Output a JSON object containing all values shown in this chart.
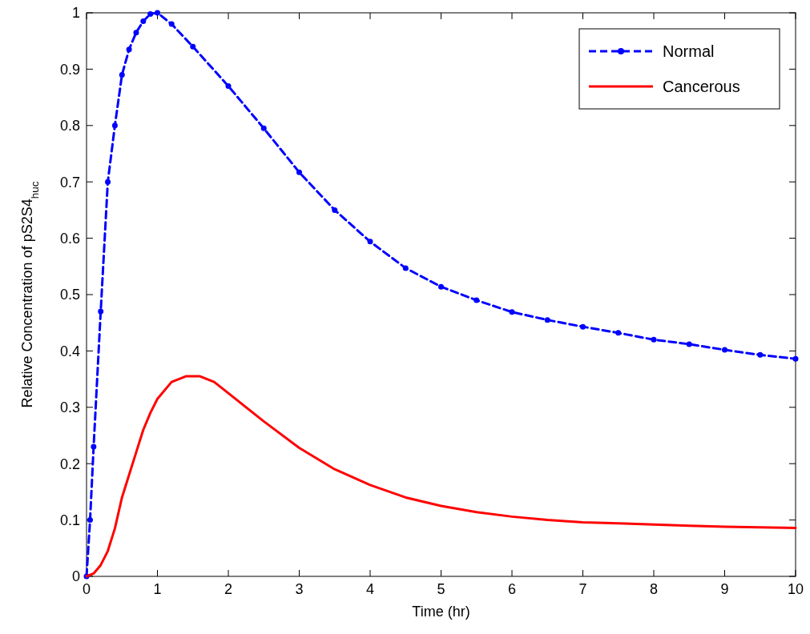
{
  "chart_data": {
    "type": "line",
    "xlabel": "Time (hr)",
    "ylabel": "Relative Concentration of pS2S4$_{huc}$",
    "xlim": [
      0,
      10
    ],
    "ylim": [
      0,
      1
    ],
    "xticks": [
      0,
      1,
      2,
      3,
      4,
      5,
      6,
      7,
      8,
      9,
      10
    ],
    "yticks": [
      0,
      0.1,
      0.2,
      0.3,
      0.4,
      0.5,
      0.6,
      0.7,
      0.8,
      0.9,
      1
    ],
    "legend": "top right",
    "grid": false,
    "series": [
      {
        "name": "Normal",
        "color": "#0000ff",
        "line_style": "dashed",
        "marker": "circle",
        "x": [
          0,
          0.05,
          0.1,
          0.2,
          0.3,
          0.4,
          0.5,
          0.6,
          0.7,
          0.8,
          0.9,
          1,
          1.2,
          1.5,
          2,
          2.5,
          3,
          3.5,
          4,
          4.5,
          5,
          5.5,
          6,
          6.5,
          7,
          7.5,
          8,
          8.5,
          9,
          9.5,
          10
        ],
        "values": [
          0,
          0.1,
          0.23,
          0.47,
          0.7,
          0.8,
          0.89,
          0.935,
          0.965,
          0.985,
          0.998,
          1,
          0.98,
          0.94,
          0.87,
          0.795,
          0.717,
          0.65,
          0.594,
          0.547,
          0.514,
          0.49,
          0.469,
          0.455,
          0.443,
          0.432,
          0.42,
          0.412,
          0.402,
          0.393,
          0.386
        ]
      },
      {
        "name": "Cancerous",
        "color": "#ff0000",
        "line_style": "solid",
        "marker": "none",
        "x": [
          0,
          0.1,
          0.2,
          0.3,
          0.4,
          0.5,
          0.6,
          0.7,
          0.8,
          0.9,
          1,
          1.2,
          1.4,
          1.6,
          1.8,
          2,
          2.5,
          3,
          3.5,
          4,
          4.5,
          5,
          5.5,
          6,
          6.5,
          7,
          7.5,
          8,
          8.5,
          9,
          9.5,
          10
        ],
        "values": [
          0,
          0.005,
          0.02,
          0.045,
          0.085,
          0.14,
          0.18,
          0.22,
          0.26,
          0.29,
          0.315,
          0.345,
          0.355,
          0.355,
          0.345,
          0.325,
          0.275,
          0.228,
          0.19,
          0.162,
          0.14,
          0.125,
          0.114,
          0.106,
          0.1,
          0.096,
          0.094,
          0.092,
          0.09,
          0.088,
          0.087,
          0.086
        ]
      }
    ]
  }
}
